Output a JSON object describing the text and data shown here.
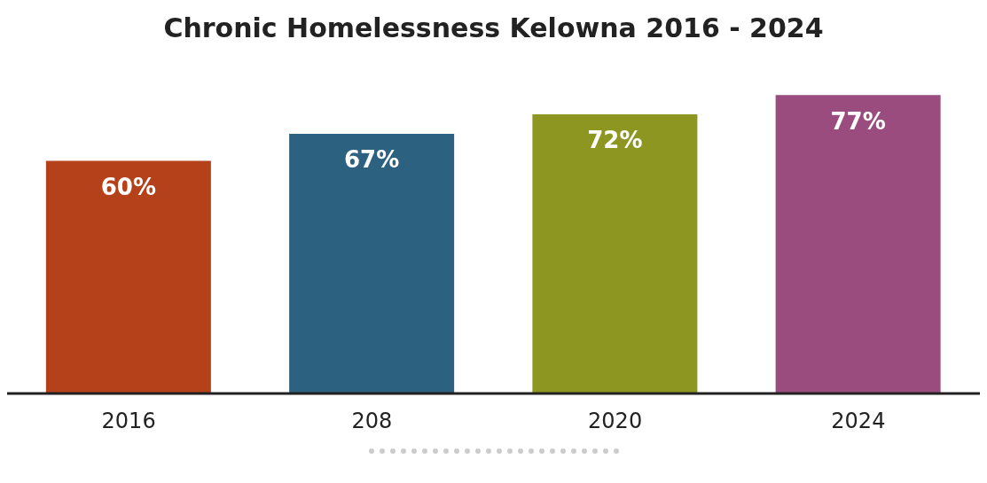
{
  "chart_data": {
    "type": "bar",
    "title": "Chronic Homelessness Kelowna 2016 - 2024",
    "categories": [
      "2016",
      "208",
      "2020",
      "2024"
    ],
    "values": [
      60,
      67,
      72,
      77
    ],
    "colors": [
      "#b5411a",
      "#2c6180",
      "#8c9620",
      "#9a4c7e"
    ],
    "value_labels": [
      "60%",
      "67%",
      "72%",
      "77%"
    ]
  }
}
